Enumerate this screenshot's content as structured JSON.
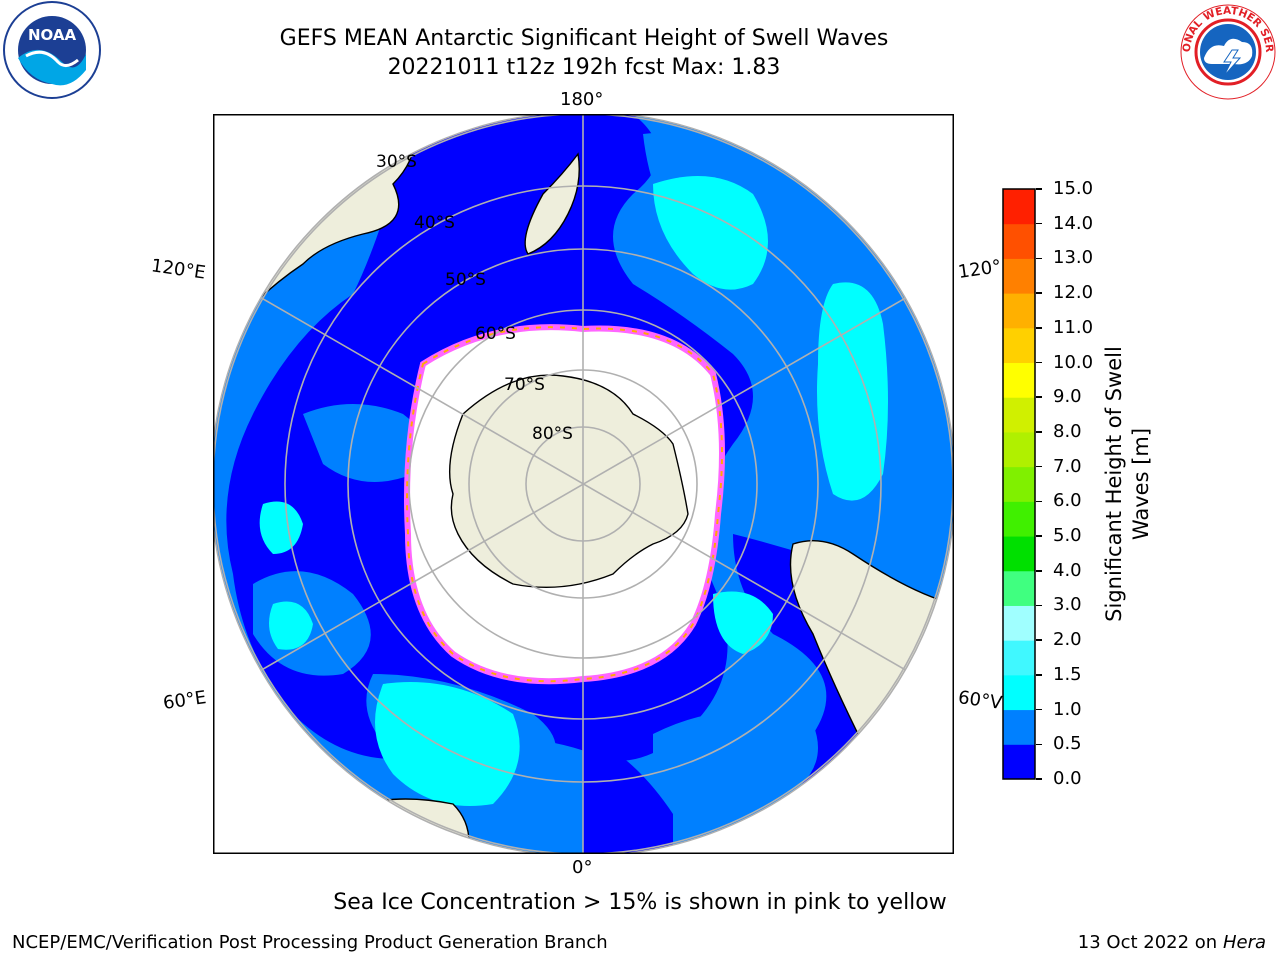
{
  "title": {
    "line1": "GEFS MEAN Antarctic Significant Height of Swell Waves",
    "line2": "20221011 t12z 192h fcst   Max: 1.83"
  },
  "map": {
    "projection": "south-polar-stereographic",
    "longitude_labels": [
      "180°",
      "120°E",
      "120°",
      "60°E",
      "60°V",
      "0°"
    ],
    "latitude_labels": [
      "30°S",
      "40°S",
      "50°S",
      "60°S",
      "70°S",
      "80°S"
    ],
    "ocean_color": "#0080ff",
    "land_color": "#eeeedc",
    "ice_edge_colors": [
      "#ff66ff",
      "#ffaa00",
      "#ffff00"
    ]
  },
  "colorbar": {
    "label": "Significant Height of Swell Waves [m]",
    "ticks": [
      "0.0",
      "0.5",
      "1.0",
      "1.5",
      "2.0",
      "3.0",
      "4.0",
      "5.0",
      "6.0",
      "7.0",
      "8.0",
      "9.0",
      "10.0",
      "11.0",
      "12.0",
      "13.0",
      "14.0",
      "15.0"
    ],
    "colors": [
      "#0000ff",
      "#0080ff",
      "#00ffff",
      "#40f8ff",
      "#a0ffff",
      "#40ff80",
      "#00e000",
      "#40f000",
      "#80f000",
      "#b0f000",
      "#d0f000",
      "#ffff00",
      "#ffd000",
      "#ffb000",
      "#ff8000",
      "#ff5000",
      "#ff2000"
    ]
  },
  "logos": {
    "left": "NOAA",
    "right": "NATIONAL WEATHER SERVICE"
  },
  "caption": "Sea Ice Concentration > 15% is shown in pink to yellow",
  "footer": {
    "left": "NCEP/EMC/Verification Post Processing Product Generation Branch",
    "right_text": "13 Oct 2022 on ",
    "right_italic": "Hera"
  }
}
